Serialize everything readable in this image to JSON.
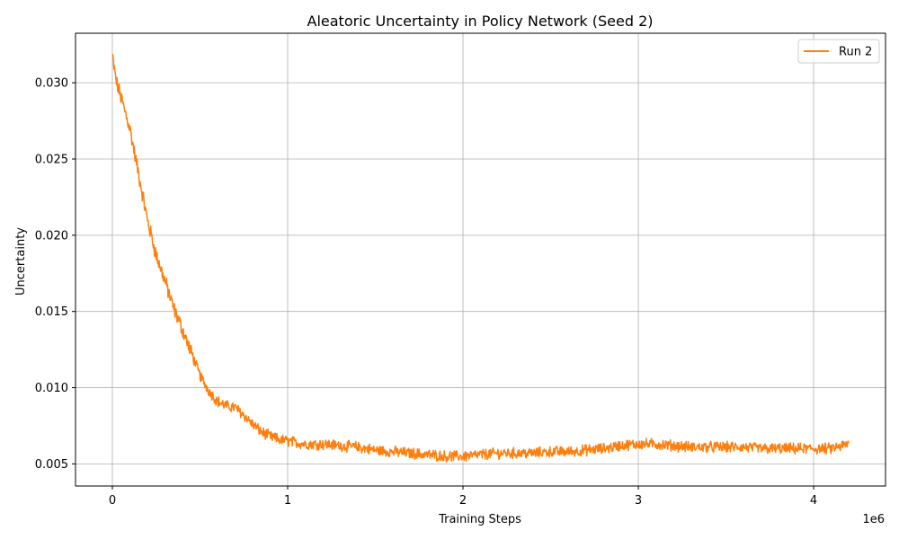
{
  "chart_data": {
    "type": "line",
    "title": "Aleatoric Uncertainty in Policy Network (Seed 2)",
    "xlabel": "Training Steps",
    "ylabel": "Uncertainty",
    "x_offset_label": "1e6",
    "xlim": [
      -210000,
      4410000
    ],
    "ylim": [
      0.00355,
      0.03325
    ],
    "x_ticks": [
      0,
      1000000,
      2000000,
      3000000,
      4000000
    ],
    "x_tick_labels": [
      "0",
      "1",
      "2",
      "3",
      "4"
    ],
    "y_ticks": [
      0.005,
      0.01,
      0.015,
      0.02,
      0.025,
      0.03
    ],
    "y_tick_labels": [
      "0.005",
      "0.010",
      "0.015",
      "0.020",
      "0.025",
      "0.030"
    ],
    "grid": true,
    "legend_position": "top-right",
    "series": [
      {
        "name": "Run 2",
        "color": "#ff7f0e",
        "x": [
          0,
          20000,
          50000,
          100000,
          150000,
          200000,
          250000,
          300000,
          350000,
          400000,
          450000,
          500000,
          550000,
          600000,
          650000,
          700000,
          750000,
          800000,
          850000,
          900000,
          950000,
          1000000,
          1100000,
          1200000,
          1300000,
          1400000,
          1500000,
          1600000,
          1700000,
          1800000,
          1900000,
          2000000,
          2100000,
          2200000,
          2300000,
          2400000,
          2500000,
          2600000,
          2700000,
          2800000,
          2900000,
          3000000,
          3100000,
          3200000,
          3300000,
          3400000,
          3500000,
          3600000,
          3700000,
          3800000,
          3900000,
          4000000,
          4100000,
          4200000
        ],
        "y": [
          0.0318,
          0.0302,
          0.029,
          0.027,
          0.024,
          0.021,
          0.0187,
          0.017,
          0.0152,
          0.0138,
          0.0123,
          0.0108,
          0.0098,
          0.0091,
          0.0088,
          0.0087,
          0.0082,
          0.0076,
          0.0071,
          0.0068,
          0.0066,
          0.0065,
          0.0063,
          0.0063,
          0.0062,
          0.0061,
          0.0059,
          0.0058,
          0.0057,
          0.0056,
          0.0055,
          0.0055,
          0.0056,
          0.0057,
          0.0057,
          0.0057,
          0.0058,
          0.0058,
          0.0059,
          0.006,
          0.0062,
          0.0063,
          0.0063,
          0.0062,
          0.0061,
          0.0061,
          0.0061,
          0.0061,
          0.006,
          0.006,
          0.006,
          0.006,
          0.006,
          0.0063
        ]
      }
    ]
  }
}
